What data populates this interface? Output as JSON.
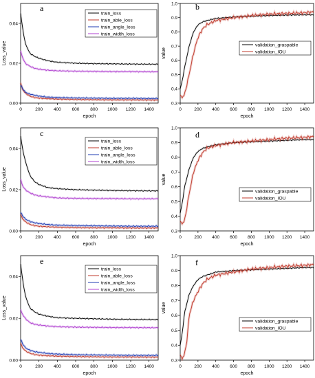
{
  "chart_data": [
    {
      "panel": "a",
      "type": "line",
      "xlabel": "epoch",
      "ylabel": "Loss_value",
      "xlim": [
        0,
        1500
      ],
      "ylim": [
        0,
        0.05
      ],
      "xticks": [
        0,
        200,
        400,
        600,
        800,
        1000,
        1200,
        1400
      ],
      "yticks": [
        0.0,
        0.02,
        0.04
      ],
      "ytick_labels": [
        "0.00",
        "0.02",
        "0.04"
      ],
      "legend": "top-right",
      "series": [
        {
          "name": "train_loss",
          "color": "#000000",
          "x": [
            0,
            20,
            50,
            100,
            150,
            200,
            300,
            400,
            600,
            800,
            1000,
            1200,
            1500
          ],
          "y": [
            0.045,
            0.038,
            0.03,
            0.025,
            0.0235,
            0.0225,
            0.0212,
            0.0205,
            0.02,
            0.0198,
            0.0197,
            0.0196,
            0.0195
          ]
        },
        {
          "name": "train_able_loss",
          "color": "#c0392b",
          "x": [
            0,
            20,
            50,
            100,
            150,
            200,
            300,
            400,
            600,
            800,
            1000,
            1200,
            1500
          ],
          "y": [
            0.01,
            0.007,
            0.005,
            0.0035,
            0.0028,
            0.0025,
            0.0022,
            0.002,
            0.0018,
            0.0017,
            0.0016,
            0.0016,
            0.0015
          ]
        },
        {
          "name": "train_angle_loss",
          "color": "#1f3bb3",
          "x": [
            0,
            20,
            50,
            100,
            150,
            200,
            300,
            400,
            600,
            800,
            1000,
            1200,
            1500
          ],
          "y": [
            0.009,
            0.0075,
            0.0055,
            0.0045,
            0.004,
            0.0035,
            0.003,
            0.0028,
            0.0026,
            0.0025,
            0.0024,
            0.0024,
            0.0023
          ]
        },
        {
          "name": "train_width_loss",
          "color": "#b040d0",
          "x": [
            0,
            20,
            50,
            100,
            150,
            200,
            300,
            400,
            600,
            800,
            1000,
            1200,
            1500
          ],
          "y": [
            0.026,
            0.023,
            0.02,
            0.0185,
            0.0175,
            0.017,
            0.0165,
            0.0162,
            0.016,
            0.0159,
            0.0158,
            0.0158,
            0.0157
          ]
        }
      ]
    },
    {
      "panel": "b",
      "type": "line",
      "xlabel": "epoch",
      "ylabel": "value",
      "xlim": [
        0,
        1500
      ],
      "ylim": [
        0.3,
        1.0
      ],
      "xticks": [
        0,
        200,
        400,
        600,
        800,
        1000,
        1200,
        1400
      ],
      "yticks": [
        0.3,
        0.4,
        0.5,
        0.6,
        0.7,
        0.8,
        0.9,
        1.0
      ],
      "ytick_labels": [
        "0.3",
        "0.4",
        "0.5",
        "0.6",
        "0.7",
        "0.8",
        "0.9",
        "1.0"
      ],
      "legend": "center-right",
      "series": [
        {
          "name": "validation_graspable",
          "color": "#000000",
          "x": [
            0,
            20,
            50,
            100,
            150,
            200,
            250,
            300,
            400,
            600,
            800,
            1000,
            1200,
            1400,
            1500
          ],
          "y": [
            0.4,
            0.45,
            0.55,
            0.7,
            0.8,
            0.85,
            0.87,
            0.88,
            0.895,
            0.905,
            0.91,
            0.915,
            0.918,
            0.92,
            0.92
          ]
        },
        {
          "name": "validation_IOU",
          "color": "#c0392b",
          "x": [
            0,
            20,
            50,
            100,
            150,
            180,
            200,
            250,
            300,
            400,
            600,
            800,
            1000,
            1200,
            1400,
            1500
          ],
          "y": [
            0.35,
            0.34,
            0.36,
            0.5,
            0.65,
            0.72,
            0.76,
            0.82,
            0.85,
            0.88,
            0.9,
            0.915,
            0.925,
            0.93,
            0.935,
            0.94
          ]
        }
      ]
    },
    {
      "panel": "c",
      "type": "line",
      "xlabel": "epoch",
      "ylabel": "Loss_value",
      "xlim": [
        0,
        1500
      ],
      "ylim": [
        0,
        0.05
      ],
      "xticks": [
        0,
        200,
        400,
        600,
        800,
        1000,
        1200,
        1400
      ],
      "yticks": [
        0.0,
        0.02,
        0.04
      ],
      "ytick_labels": [
        "0.00",
        "0.02",
        "0.04"
      ],
      "legend": "top-right",
      "series": [
        {
          "name": "train_loss",
          "color": "#000000",
          "x": [
            0,
            20,
            50,
            100,
            150,
            200,
            300,
            400,
            600,
            800,
            1000,
            1200,
            1500
          ],
          "y": [
            0.046,
            0.04,
            0.034,
            0.027,
            0.024,
            0.0225,
            0.021,
            0.0205,
            0.02,
            0.0198,
            0.0196,
            0.0195,
            0.0194
          ]
        },
        {
          "name": "train_able_loss",
          "color": "#c0392b",
          "x": [
            0,
            20,
            50,
            100,
            150,
            200,
            300,
            400,
            600,
            800,
            1000,
            1200,
            1500
          ],
          "y": [
            0.008,
            0.006,
            0.0045,
            0.0032,
            0.0026,
            0.0023,
            0.002,
            0.0018,
            0.0016,
            0.0015,
            0.0015,
            0.0014,
            0.0014
          ]
        },
        {
          "name": "train_angle_loss",
          "color": "#1f3bb3",
          "x": [
            0,
            20,
            50,
            100,
            150,
            200,
            300,
            400,
            600,
            800,
            1000,
            1200,
            1500
          ],
          "y": [
            0.009,
            0.0075,
            0.0058,
            0.0046,
            0.004,
            0.0036,
            0.0031,
            0.0028,
            0.0026,
            0.0025,
            0.0024,
            0.0023,
            0.0023
          ]
        },
        {
          "name": "train_width_loss",
          "color": "#b040d0",
          "x": [
            0,
            20,
            50,
            100,
            150,
            200,
            300,
            400,
            600,
            800,
            1000,
            1200,
            1500
          ],
          "y": [
            0.025,
            0.022,
            0.02,
            0.0185,
            0.0175,
            0.017,
            0.0165,
            0.016,
            0.0158,
            0.0157,
            0.0157,
            0.0156,
            0.0156
          ]
        }
      ]
    },
    {
      "panel": "d",
      "type": "line",
      "xlabel": "epoch",
      "ylabel": "value",
      "xlim": [
        0,
        1500
      ],
      "ylim": [
        0.3,
        1.0
      ],
      "xticks": [
        0,
        200,
        400,
        600,
        800,
        1000,
        1200,
        1400
      ],
      "yticks": [
        0.3,
        0.4,
        0.5,
        0.6,
        0.7,
        0.8,
        0.9,
        1.0
      ],
      "ytick_labels": [
        "0.3",
        "0.4",
        "0.5",
        "0.6",
        "0.7",
        "0.8",
        "0.9",
        "1.0"
      ],
      "legend": "bottom-right",
      "series": [
        {
          "name": "validation_graspable",
          "color": "#000000",
          "x": [
            0,
            20,
            50,
            100,
            150,
            200,
            250,
            300,
            400,
            600,
            800,
            1000,
            1200,
            1400,
            1500
          ],
          "y": [
            0.42,
            0.48,
            0.6,
            0.72,
            0.8,
            0.84,
            0.86,
            0.87,
            0.885,
            0.9,
            0.905,
            0.91,
            0.915,
            0.92,
            0.92
          ]
        },
        {
          "name": "validation_IOU",
          "color": "#c0392b",
          "x": [
            0,
            20,
            50,
            100,
            150,
            200,
            250,
            300,
            400,
            600,
            800,
            1000,
            1200,
            1400,
            1500
          ],
          "y": [
            0.36,
            0.35,
            0.37,
            0.55,
            0.7,
            0.78,
            0.83,
            0.86,
            0.88,
            0.9,
            0.91,
            0.92,
            0.93,
            0.935,
            0.94
          ]
        }
      ]
    },
    {
      "panel": "e",
      "type": "line",
      "xlabel": "epoch",
      "ylabel": "Loss_value",
      "xlim": [
        0,
        1500
      ],
      "ylim": [
        0,
        0.05
      ],
      "xticks": [
        0,
        200,
        400,
        600,
        800,
        1000,
        1200,
        1400
      ],
      "yticks": [
        0.0,
        0.02,
        0.04
      ],
      "ytick_labels": [
        "0.00",
        "0.02",
        "0.04"
      ],
      "legend": "top-right",
      "series": [
        {
          "name": "train_loss",
          "color": "#000000",
          "x": [
            0,
            20,
            50,
            100,
            150,
            200,
            300,
            400,
            600,
            800,
            1000,
            1200,
            1500
          ],
          "y": [
            0.046,
            0.039,
            0.031,
            0.025,
            0.0232,
            0.022,
            0.021,
            0.0203,
            0.02,
            0.0198,
            0.0196,
            0.0195,
            0.0194
          ]
        },
        {
          "name": "train_able_loss",
          "color": "#c0392b",
          "x": [
            0,
            20,
            50,
            100,
            150,
            200,
            300,
            400,
            600,
            800,
            1000,
            1200,
            1500
          ],
          "y": [
            0.008,
            0.006,
            0.0045,
            0.0033,
            0.0027,
            0.0024,
            0.0021,
            0.0019,
            0.0017,
            0.0016,
            0.0015,
            0.0015,
            0.0014
          ]
        },
        {
          "name": "train_angle_loss",
          "color": "#1f3bb3",
          "x": [
            0,
            20,
            50,
            100,
            150,
            200,
            300,
            400,
            600,
            800,
            1000,
            1200,
            1500
          ],
          "y": [
            0.01,
            0.008,
            0.006,
            0.0047,
            0.0041,
            0.0037,
            0.0032,
            0.0029,
            0.0026,
            0.0025,
            0.0024,
            0.0023,
            0.0023
          ]
        },
        {
          "name": "train_width_loss",
          "color": "#b040d0",
          "x": [
            0,
            20,
            50,
            100,
            150,
            200,
            300,
            400,
            600,
            800,
            1000,
            1200,
            1500
          ],
          "y": [
            0.024,
            0.022,
            0.02,
            0.018,
            0.0172,
            0.0168,
            0.0163,
            0.016,
            0.0158,
            0.0157,
            0.0156,
            0.0156,
            0.0155
          ]
        }
      ]
    },
    {
      "panel": "f",
      "type": "line",
      "xlabel": "epoch",
      "ylabel": "value",
      "xlim": [
        0,
        1500
      ],
      "ylim": [
        0.3,
        1.0
      ],
      "xticks": [
        0,
        200,
        400,
        600,
        800,
        1000,
        1200,
        1400
      ],
      "yticks": [
        0.3,
        0.4,
        0.5,
        0.6,
        0.7,
        0.8,
        0.9,
        1.0
      ],
      "ytick_labels": [
        "0.3",
        "0.4",
        "0.5",
        "0.6",
        "0.7",
        "0.8",
        "0.9",
        "1.0"
      ],
      "legend": "center-right",
      "series": [
        {
          "name": "validation_graspable",
          "color": "#000000",
          "x": [
            0,
            20,
            50,
            100,
            150,
            200,
            250,
            300,
            400,
            600,
            800,
            1000,
            1200,
            1400,
            1500
          ],
          "y": [
            0.4,
            0.47,
            0.62,
            0.74,
            0.8,
            0.84,
            0.86,
            0.87,
            0.89,
            0.9,
            0.905,
            0.91,
            0.915,
            0.92,
            0.92
          ]
        },
        {
          "name": "validation_IOU",
          "color": "#c0392b",
          "x": [
            0,
            20,
            50,
            80,
            100,
            150,
            200,
            250,
            300,
            400,
            600,
            800,
            1000,
            1200,
            1400,
            1500
          ],
          "y": [
            0.33,
            0.31,
            0.34,
            0.45,
            0.6,
            0.7,
            0.76,
            0.81,
            0.84,
            0.87,
            0.89,
            0.91,
            0.92,
            0.93,
            0.935,
            0.94
          ]
        }
      ]
    }
  ]
}
